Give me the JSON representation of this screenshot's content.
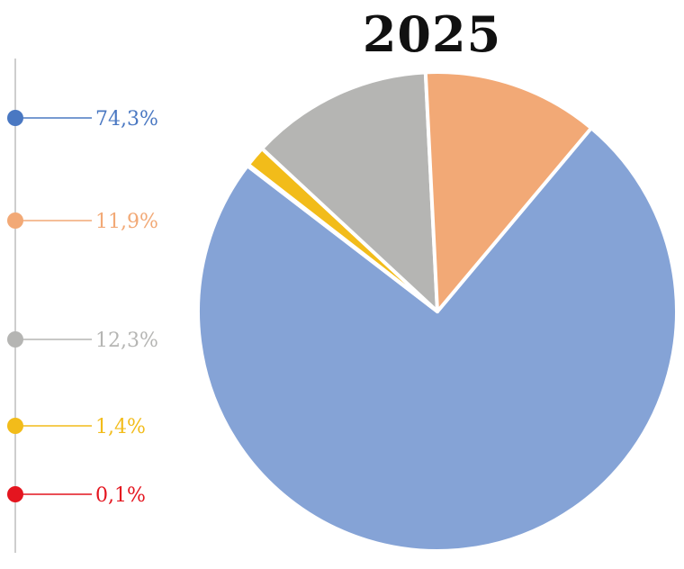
{
  "chart_data": {
    "type": "pie",
    "title": "2025",
    "slices": [
      {
        "label": "74,3%",
        "value": 74.3,
        "color": "#85A3D6",
        "legend_color": "#4A78C2"
      },
      {
        "label": "0,1%",
        "value": 0.1,
        "color": "#D62020",
        "legend_color": "#E4151F"
      },
      {
        "label": "1,4%",
        "value": 1.4,
        "color": "#F2BC1A",
        "legend_color": "#F2BC1A"
      },
      {
        "label": "12,3%",
        "value": 12.3,
        "color": "#B5B5B3",
        "legend_color": "#B5B5B3"
      },
      {
        "label": "11,9%",
        "value": 11.9,
        "color": "#F2A976",
        "legend_color": "#F2A976"
      }
    ],
    "legend_order": [
      "74,3%",
      "11,9%",
      "12,3%",
      "1,4%",
      "0,1%"
    ],
    "legend_placement": "left"
  }
}
